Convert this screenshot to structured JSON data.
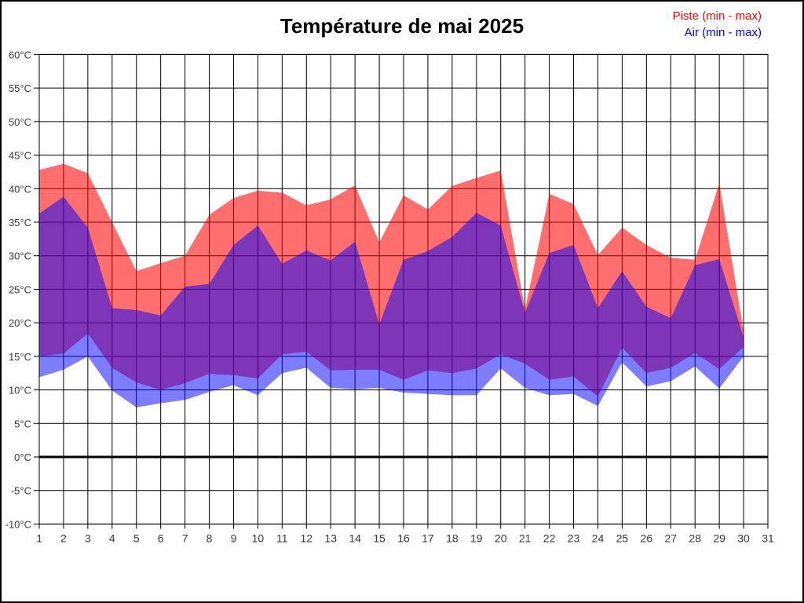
{
  "title": "Température de mai 2025",
  "chart_data": {
    "type": "area",
    "title": "Température de mai 2025",
    "y_unit": "°C",
    "x": [
      1,
      2,
      3,
      4,
      5,
      6,
      7,
      8,
      9,
      10,
      11,
      12,
      13,
      14,
      15,
      16,
      17,
      18,
      19,
      20,
      21,
      22,
      23,
      24,
      25,
      26,
      27,
      28,
      29,
      30
    ],
    "x_axis_ticks": [
      1,
      2,
      3,
      4,
      5,
      6,
      7,
      8,
      9,
      10,
      11,
      12,
      13,
      14,
      15,
      16,
      17,
      18,
      19,
      20,
      21,
      22,
      23,
      24,
      25,
      26,
      27,
      28,
      29,
      30,
      31
    ],
    "ylim": [
      -10,
      60
    ],
    "y_tick_step": 5,
    "grid": true,
    "zero_line": true,
    "legend_position": "top-right",
    "bands": [
      {
        "name": "Piste (min - max)",
        "fill": "rgba(255,0,0,0.57)",
        "legend_color": "#ff0000",
        "max": [
          42.8,
          43.7,
          42.3,
          35.0,
          27.7,
          28.9,
          30.0,
          36.1,
          38.6,
          39.7,
          39.4,
          37.5,
          38.4,
          40.5,
          32.0,
          39.0,
          36.9,
          40.4,
          41.6,
          42.7,
          22.0,
          39.2,
          37.7,
          30.1,
          34.2,
          31.6,
          29.7,
          29.4,
          40.8,
          18.7
        ],
        "min": [
          15.0,
          15.4,
          18.4,
          13.3,
          11.1,
          10.0,
          11.0,
          12.4,
          12.2,
          11.7,
          15.3,
          15.7,
          12.9,
          13.0,
          13.0,
          11.5,
          12.9,
          12.5,
          13.2,
          15.3,
          13.9,
          11.5,
          12.0,
          9.0,
          16.3,
          12.5,
          13.3,
          15.5,
          13.1,
          16.4
        ]
      },
      {
        "name": "Air (min - max)",
        "fill": "rgba(0,0,255,0.51)",
        "legend_color": "#0000ff",
        "max": [
          36.3,
          38.8,
          34.2,
          22.2,
          21.9,
          21.1,
          25.4,
          25.8,
          31.6,
          34.5,
          28.8,
          30.8,
          29.3,
          32.1,
          19.8,
          29.4,
          30.7,
          32.8,
          36.4,
          34.5,
          21.5,
          30.4,
          31.6,
          22.2,
          27.7,
          22.4,
          20.7,
          28.6,
          29.5,
          17.8
        ],
        "min": [
          11.9,
          13.0,
          15.0,
          9.9,
          7.4,
          8.0,
          8.5,
          9.7,
          10.7,
          9.2,
          12.5,
          13.3,
          10.3,
          10.1,
          10.3,
          9.6,
          9.4,
          9.2,
          9.2,
          13.2,
          10.3,
          9.2,
          9.4,
          7.6,
          14.1,
          10.5,
          11.3,
          13.5,
          10.2,
          15.0
        ]
      }
    ]
  }
}
